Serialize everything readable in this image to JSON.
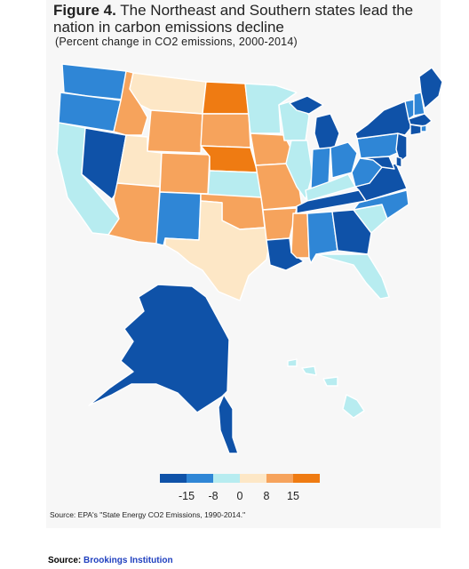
{
  "figure": {
    "label": "Figure 4.",
    "title": "The Northeast and Southern states lead the nation in carbon emissions decline",
    "subtitle": "(Percent change in CO2 emissions, 2000-2014)"
  },
  "legend": {
    "ticks": [
      "-15",
      "-8",
      "0",
      "8",
      "15"
    ],
    "colors": [
      "#0f52a8",
      "#2f86d6",
      "#b7ecf0",
      "#fde7c6",
      "#f6a35c",
      "#ef7b12"
    ]
  },
  "source_note": "Source: EPA's \"State Energy CO2 Emissions, 1990-2014.\"",
  "footer": {
    "prefix": "Source: ",
    "link_text": "Brookings Institution"
  },
  "map_data": {
    "WA": 1,
    "OR": 1,
    "CA": 2,
    "NV": 0,
    "ID": 4,
    "MT": 3,
    "WY": 4,
    "UT": 3,
    "AZ": 4,
    "CO": 4,
    "NM": 1,
    "ND": 5,
    "SD": 4,
    "NE": 5,
    "KS": 2,
    "OK": 4,
    "TX": 3,
    "MN": 2,
    "IA": 4,
    "MO": 4,
    "AR": 4,
    "LA": 0,
    "WI": 2,
    "IL": 2,
    "MS": 4,
    "MI": 0,
    "IN": 1,
    "KY": 2,
    "TN": 0,
    "AL": 1,
    "GA": 0,
    "FL": 2,
    "SC": 2,
    "NC": 1,
    "VA": 0,
    "WV": 1,
    "OH": 1,
    "PA": 1,
    "NY": 0,
    "VT": 1,
    "NH": 1,
    "ME": 0,
    "MA": 0,
    "CT": 0,
    "RI": 1,
    "NJ": 0,
    "DE": 0,
    "MD": 0,
    "AK": 0,
    "HI": 2
  }
}
